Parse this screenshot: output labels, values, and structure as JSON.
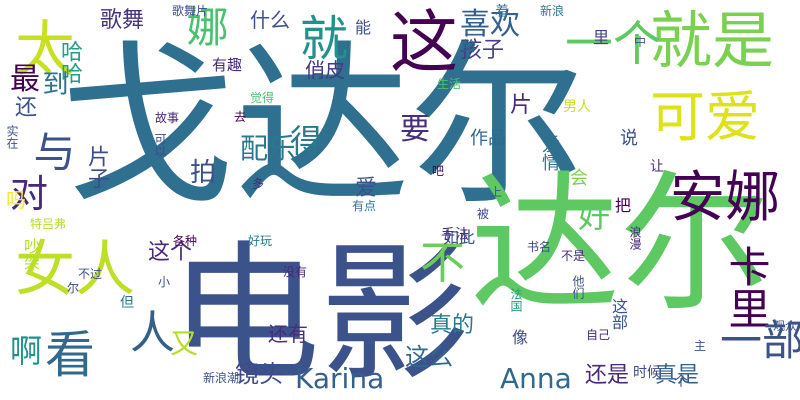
{
  "words": [
    {
      "text": "戈达尔",
      "color": "#2f6f8f",
      "vertical": false
    },
    {
      "text": "电影",
      "color": "#3b528b",
      "vertical": false
    },
    {
      "text": "达尔",
      "color": "#5ec962",
      "vertical": false
    },
    {
      "text": "这",
      "color": "#440154",
      "vertical": false
    },
    {
      "text": "就是",
      "color": "#7ad151",
      "vertical": false
    },
    {
      "text": "可爱",
      "color": "#dde318",
      "vertical": false
    },
    {
      "text": "安娜",
      "color": "#440154",
      "vertical": false
    },
    {
      "text": "女人",
      "color": "#bddf26",
      "vertical": false
    },
    {
      "text": "太",
      "color": "#c8e020",
      "vertical": false
    },
    {
      "text": "就",
      "color": "#21918c",
      "vertical": false
    },
    {
      "text": "娜",
      "color": "#4ac16d",
      "vertical": true
    },
    {
      "text": "一个",
      "color": "#5ec962",
      "vertical": false
    },
    {
      "text": "与",
      "color": "#3b528b",
      "vertical": true
    },
    {
      "text": "看",
      "color": "#31688e",
      "vertical": false
    },
    {
      "text": "人",
      "color": "#35608d",
      "vertical": false
    },
    {
      "text": "不",
      "color": "#6ccd5a",
      "vertical": false
    },
    {
      "text": "卡里",
      "color": "#440154",
      "vertical": true
    },
    {
      "text": "一部",
      "color": "#3b528b",
      "vertical": false
    },
    {
      "text": "对",
      "color": "#482878",
      "vertical": false
    },
    {
      "text": "喜欢",
      "color": "#35608d",
      "vertical": false
    },
    {
      "text": "好",
      "color": "#5ec962",
      "vertical": false
    },
    {
      "text": "得",
      "color": "#2a788e",
      "vertical": false
    },
    {
      "text": "要",
      "color": "#472d7b",
      "vertical": false
    },
    {
      "text": "配乐",
      "color": "#2a788e",
      "vertical": false
    },
    {
      "text": "拍",
      "color": "#3b528b",
      "vertical": false
    },
    {
      "text": "最",
      "color": "#440154",
      "vertical": false
    },
    {
      "text": "Karina",
      "color": "#35608d",
      "vertical": false
    },
    {
      "text": "Anna",
      "color": "#31688e",
      "vertical": false
    },
    {
      "text": "镜头",
      "color": "#3e4a89",
      "vertical": false
    },
    {
      "text": "这么",
      "color": "#31688e",
      "vertical": false
    },
    {
      "text": "还是",
      "color": "#482878",
      "vertical": false
    },
    {
      "text": "真是",
      "color": "#35608d",
      "vertical": false
    },
    {
      "text": "真的",
      "color": "#2a788e",
      "vertical": false
    },
    {
      "text": "啊",
      "color": "#21918c",
      "vertical": false
    },
    {
      "text": "又",
      "color": "#b5de2b",
      "vertical": false
    },
    {
      "text": "孩子",
      "color": "#433e85",
      "vertical": false
    },
    {
      "text": "歌舞",
      "color": "#46327e",
      "vertical": false
    },
    {
      "text": "什么",
      "color": "#3b528b",
      "vertical": false
    },
    {
      "text": "俏皮",
      "color": "#443983",
      "vertical": false
    },
    {
      "text": "有趣",
      "color": "#482878",
      "vertical": false
    },
    {
      "text": "哈哈",
      "color": "#1f9e89",
      "vertical": true
    },
    {
      "text": "到",
      "color": "#2c728e",
      "vertical": true
    },
    {
      "text": "还",
      "color": "#3b528b",
      "vertical": true
    },
    {
      "text": "片子",
      "color": "#3e4a89",
      "vertical": true
    },
    {
      "text": "片",
      "color": "#482878",
      "vertical": false
    },
    {
      "text": "作品",
      "color": "#31688e",
      "vertical": false
    },
    {
      "text": "说",
      "color": "#3b528b",
      "vertical": false
    },
    {
      "text": "会",
      "color": "#7ad151",
      "vertical": false
    },
    {
      "text": "爱",
      "color": "#3b528b",
      "vertical": false
    },
    {
      "text": "爱情",
      "color": "#2c728e",
      "vertical": true
    },
    {
      "text": "把",
      "color": "#440154",
      "vertical": false
    },
    {
      "text": "让",
      "color": "#482878",
      "vertical": false
    },
    {
      "text": "能",
      "color": "#3b528b",
      "vertical": false
    },
    {
      "text": "给",
      "color": "#31688e",
      "vertical": false
    },
    {
      "text": "里",
      "color": "#433e85",
      "vertical": false
    },
    {
      "text": "中",
      "color": "#3b528b",
      "vertical": false
    },
    {
      "text": "着",
      "color": "#2a788e",
      "vertical": false
    },
    {
      "text": "歌舞片",
      "color": "#3e4a89",
      "vertical": false
    },
    {
      "text": "新浪",
      "color": "#2a788e",
      "vertical": false
    },
    {
      "text": "男人",
      "color": "#c8e020",
      "vertical": false
    },
    {
      "text": "生活",
      "color": "#4ac16d",
      "vertical": false
    },
    {
      "text": "觉得",
      "color": "#4ac16d",
      "vertical": false
    },
    {
      "text": "故事",
      "color": "#482878",
      "vertical": false
    },
    {
      "text": "去",
      "color": "#440154",
      "vertical": false
    },
    {
      "text": "可以",
      "color": "#3e4a89",
      "vertical": true
    },
    {
      "text": "实在",
      "color": "#3b528b",
      "vertical": true
    },
    {
      "text": "吗",
      "color": "#fde725",
      "vertical": false
    },
    {
      "text": "特吕弗",
      "color": "#b5de2b",
      "vertical": false
    },
    {
      "text": "吵架",
      "color": "#b5de2b",
      "vertical": true
    },
    {
      "text": "这个",
      "color": "#482878",
      "vertical": false
    },
    {
      "text": "各种",
      "color": "#440154",
      "vertical": false
    },
    {
      "text": "好玩",
      "color": "#2a788e",
      "vertical": false
    },
    {
      "text": "有点",
      "color": "#2a788e",
      "vertical": false
    },
    {
      "text": "吧",
      "color": "#440154",
      "vertical": false
    },
    {
      "text": "多",
      "color": "#482878",
      "vertical": false
    },
    {
      "text": "上",
      "color": "#3b528b",
      "vertical": false
    },
    {
      "text": "被",
      "color": "#3e4a89",
      "vertical": false
    },
    {
      "text": "浪漫",
      "color": "#482878",
      "vertical": true
    },
    {
      "text": "如此",
      "color": "#3b528b",
      "vertical": false
    },
    {
      "text": "书名",
      "color": "#3e4a89",
      "vertical": false
    },
    {
      "text": "不是",
      "color": "#482878",
      "vertical": false
    },
    {
      "text": "手法",
      "color": "#472d7b",
      "vertical": false
    },
    {
      "text": "不过",
      "color": "#3b528b",
      "vertical": false
    },
    {
      "text": "尔",
      "color": "#3e4a89",
      "vertical": false
    },
    {
      "text": "小",
      "color": "#3b528b",
      "vertical": false
    },
    {
      "text": "没有",
      "color": "#482878",
      "vertical": false
    },
    {
      "text": "他们",
      "color": "#3b528b",
      "vertical": true
    },
    {
      "text": "法国",
      "color": "#1f9e89",
      "vertical": true
    },
    {
      "text": "但",
      "color": "#2a788e",
      "vertical": false
    },
    {
      "text": "像",
      "color": "#3e4a89",
      "vertical": false
    },
    {
      "text": "这部",
      "color": "#3b528b",
      "vertical": true
    },
    {
      "text": "还有",
      "color": "#472d7b",
      "vertical": false
    },
    {
      "text": "自己",
      "color": "#482878",
      "vertical": false
    },
    {
      "text": "主",
      "color": "#3b528b",
      "vertical": false
    },
    {
      "text": "时候",
      "color": "#3e4a89",
      "vertical": false
    },
    {
      "text": "个",
      "color": "#3b528b",
      "vertical": false
    },
    {
      "text": "观众",
      "color": "#3b528b",
      "vertical": false
    },
    {
      "text": "新浪潮",
      "color": "#3b528b",
      "vertical": false
    }
  ]
}
